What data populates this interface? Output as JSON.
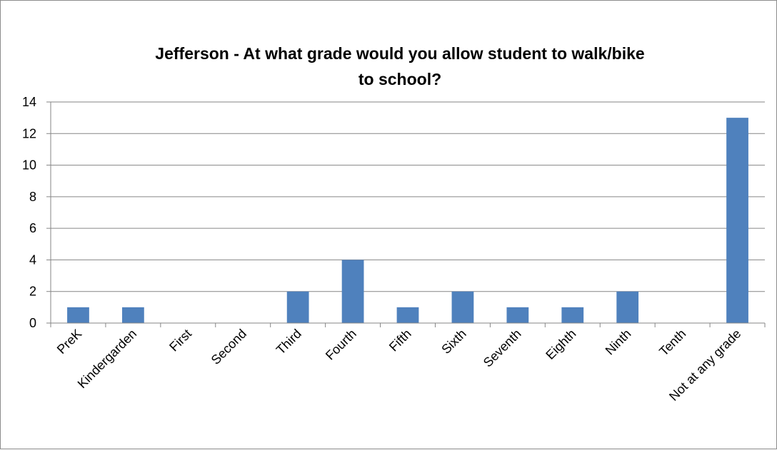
{
  "chart_data": {
    "type": "bar",
    "title_lines": [
      "Jefferson - At what grade would you allow student to walk/bike",
      "to school?"
    ],
    "categories": [
      "PreK",
      "Kindergarden",
      "First",
      "Second",
      "Third",
      "Fourth",
      "Fifth",
      "Sixth",
      "Seventh",
      "Eighth",
      "Ninth",
      "Tenth",
      "Not at any grade"
    ],
    "values": [
      1,
      1,
      0,
      0,
      2,
      4,
      1,
      2,
      1,
      1,
      2,
      0,
      13
    ],
    "y_ticks": [
      "0",
      "2",
      "4",
      "6",
      "8",
      "10",
      "12",
      "14"
    ],
    "ylim": [
      0,
      14
    ],
    "xlabel": "",
    "ylabel": "",
    "grid": true,
    "legend": "none",
    "colors": {
      "bar": "#4f81bd",
      "gridline": "#868686",
      "axis": "#868686",
      "border": "#8c8c8c"
    }
  }
}
